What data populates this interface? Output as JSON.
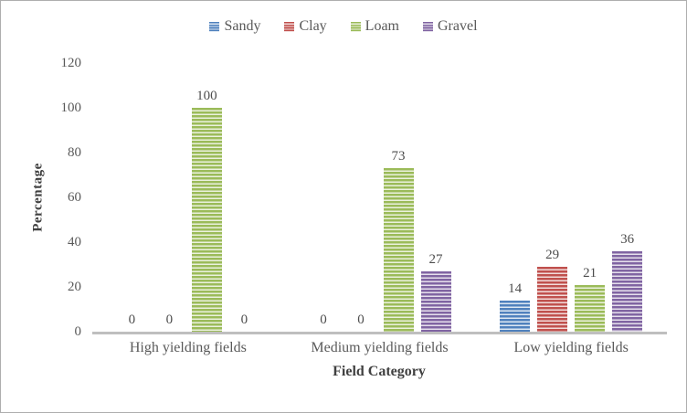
{
  "chart_data": {
    "type": "bar",
    "title": "",
    "categories": [
      "High yielding fields",
      "Medium yielding fields",
      "Low yielding fields"
    ],
    "series": [
      {
        "name": "Sandy",
        "color": "#4F81BD",
        "light_color": "#DDE8F3",
        "values": [
          0,
          0,
          14
        ]
      },
      {
        "name": "Clay",
        "color": "#C0504D",
        "light_color": "#F2DCDB",
        "values": [
          0,
          0,
          29
        ]
      },
      {
        "name": "Loam",
        "color": "#9BBB59",
        "light_color": "#EBF1DE",
        "values": [
          100,
          73,
          21
        ]
      },
      {
        "name": "Gravel",
        "color": "#8064A2",
        "light_color": "#E6E0EC",
        "values": [
          0,
          27,
          36
        ]
      }
    ],
    "xlabel": "Field Category",
    "ylabel": "Percentage",
    "ylim": [
      0,
      120
    ],
    "yticks": [
      0,
      20,
      40,
      60,
      80,
      100,
      120
    ],
    "grid": false,
    "legend_position": "top",
    "data_labels": true,
    "bar_pattern": "horizontal-stripes",
    "axis_line_color": "#BFBFBF"
  }
}
